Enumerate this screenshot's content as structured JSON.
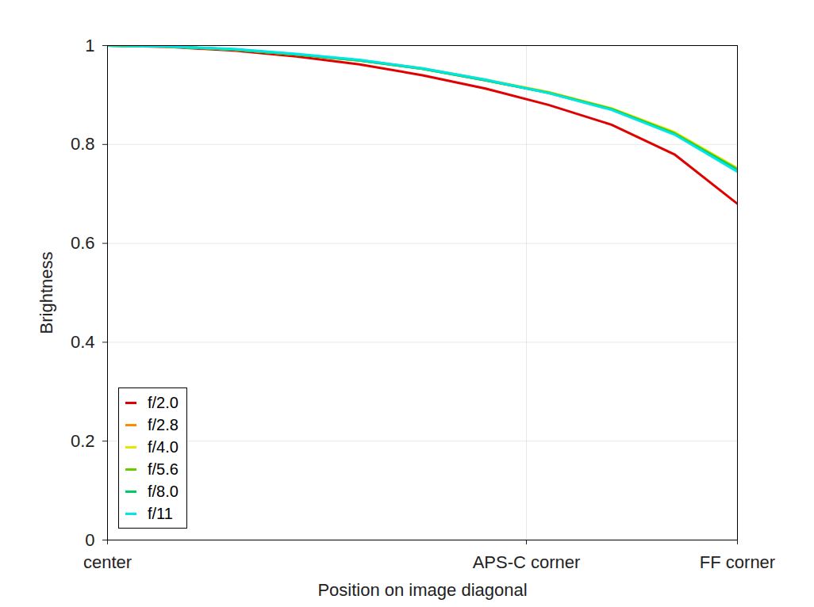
{
  "chart_data": {
    "type": "line",
    "x_label": "Position on image diagonal",
    "y_label": "Brightness",
    "x": [
      0,
      0.1,
      0.2,
      0.3,
      0.4,
      0.5,
      0.6,
      0.7,
      0.8,
      0.9,
      1.0
    ],
    "series": [
      {
        "name": "f/2.0",
        "color": "#e00000",
        "values": [
          1.0,
          0.997,
          0.99,
          0.978,
          0.962,
          0.94,
          0.913,
          0.88,
          0.84,
          0.78,
          0.68
        ]
      },
      {
        "name": "f/2.8",
        "color": "#ff8c00",
        "values": [
          1.0,
          0.998,
          0.992,
          0.982,
          0.97,
          0.953,
          0.93,
          0.905,
          0.872,
          0.823,
          0.75
        ]
      },
      {
        "name": "f/4.0",
        "color": "#e6e600",
        "values": [
          1.0,
          0.998,
          0.992,
          0.982,
          0.97,
          0.954,
          0.931,
          0.906,
          0.873,
          0.825,
          0.752
        ]
      },
      {
        "name": "f/5.6",
        "color": "#66cc00",
        "values": [
          1.0,
          0.998,
          0.992,
          0.982,
          0.97,
          0.953,
          0.93,
          0.905,
          0.872,
          0.823,
          0.75
        ]
      },
      {
        "name": "f/8.0",
        "color": "#00cc66",
        "values": [
          1.0,
          0.998,
          0.992,
          0.982,
          0.97,
          0.953,
          0.93,
          0.904,
          0.871,
          0.821,
          0.748
        ]
      },
      {
        "name": "f/11",
        "color": "#00e5e5",
        "values": [
          1.0,
          0.998,
          0.993,
          0.983,
          0.971,
          0.954,
          0.931,
          0.904,
          0.87,
          0.82,
          0.745
        ]
      }
    ],
    "xlim": [
      0,
      1
    ],
    "xticks": [
      {
        "value": 0,
        "label": "center"
      },
      {
        "value": 0.665,
        "label": "APS-C corner"
      },
      {
        "value": 1,
        "label": "FF corner"
      }
    ],
    "ylim": [
      0,
      1
    ],
    "yticks": [
      0,
      0.2,
      0.4,
      0.6,
      0.8,
      1
    ],
    "grid": true,
    "legend": "lower left",
    "line_style": "solid"
  }
}
